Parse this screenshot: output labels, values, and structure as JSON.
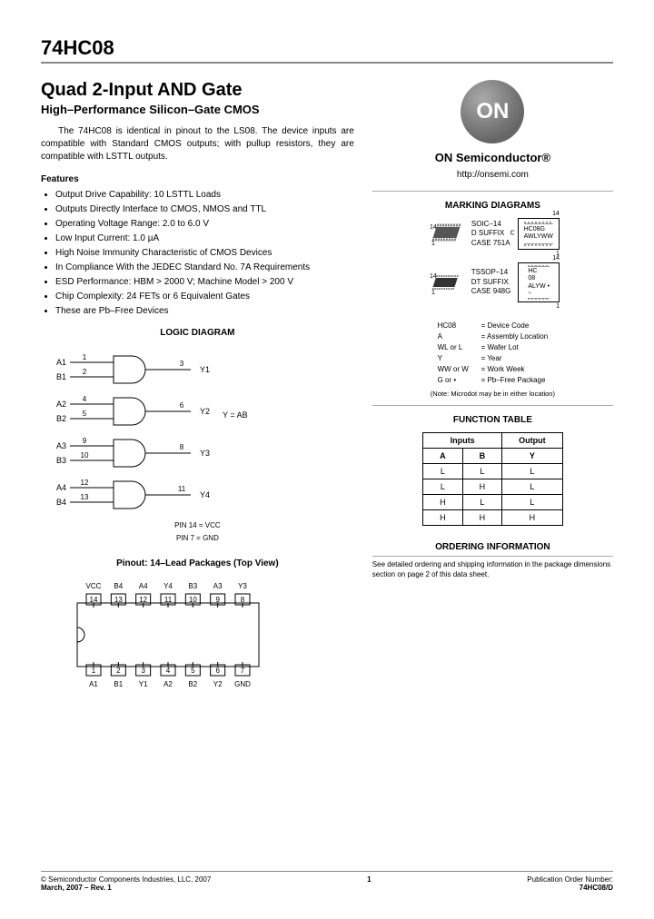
{
  "part_number": "74HC08",
  "title": "Quad 2-Input AND Gate",
  "subtitle": "High–Performance Silicon–Gate CMOS",
  "description": "The 74HC08 is identical in pinout to the LS08. The device inputs are compatible with Standard CMOS outputs; with pullup resistors, they are compatible with LSTTL outputs.",
  "features_h": "Features",
  "features": [
    "Output Drive Capability: 10 LSTTL Loads",
    "Outputs Directly Interface to CMOS, NMOS and TTL",
    "Operating Voltage Range: 2.0 to 6.0 V",
    "Low Input Current: 1.0 µA",
    "High Noise Immunity Characteristic of CMOS Devices",
    "In Compliance With the JEDEC Standard No. 7A Requirements",
    "ESD Performance: HBM > 2000 V; Machine Model > 200 V",
    "Chip Complexity: 24 FETs or 6 Equivalent Gates",
    "These are Pb–Free Devices"
  ],
  "logo_text": "ON",
  "brand": "ON Semiconductor®",
  "url": "http://onsemi.com",
  "marking_h": "MARKING DIAGRAMS",
  "package1": {
    "line1": "SOIC–14",
    "line2": "D SUFFIX",
    "line3": "CASE 751A",
    "pin14": "14",
    "pin1": "1",
    "chip_l1": "HC08G",
    "chip_l2": "AWLYWW"
  },
  "package2": {
    "line1": "TSSOP–14",
    "line2": "DT SUFFIX",
    "line3": "CASE 948G",
    "pin14": "14",
    "pin1": "1",
    "chip_l1": "HC",
    "chip_l2": "08",
    "chip_l3": "ALYW •"
  },
  "legend": [
    {
      "k": "HC08",
      "v": "= Device Code"
    },
    {
      "k": "A",
      "v": "= Assembly Location"
    },
    {
      "k": "WL or L",
      "v": "= Wafer Lot"
    },
    {
      "k": "Y",
      "v": "= Year"
    },
    {
      "k": "WW or W",
      "v": "= Work Week"
    },
    {
      "k": "G or •",
      "v": "= Pb–Free Package"
    }
  ],
  "legend_note": "(Note: Microdot may be in either location)",
  "logic_h": "LOGIC DIAGRAM",
  "gates": [
    {
      "a": "A1",
      "ap": "1",
      "b": "B1",
      "bp": "2",
      "y": "Y1",
      "yp": "3"
    },
    {
      "a": "A2",
      "ap": "4",
      "b": "B2",
      "bp": "5",
      "y": "Y2",
      "yp": "6"
    },
    {
      "a": "A3",
      "ap": "9",
      "b": "B3",
      "bp": "10",
      "y": "Y3",
      "yp": "8"
    },
    {
      "a": "A4",
      "ap": "12",
      "b": "B4",
      "bp": "13",
      "y": "Y4",
      "yp": "11"
    }
  ],
  "logic_eq": "Y = AB",
  "pin14_note": "PIN 14 = VCC",
  "pin7_note": "PIN 7 = GND",
  "pinout_h": "Pinout: 14–Lead Packages (Top View)",
  "pins_top": [
    "VCC",
    "B4",
    "A4",
    "Y4",
    "B3",
    "A3",
    "Y3"
  ],
  "pins_top_n": [
    "14",
    "13",
    "12",
    "11",
    "10",
    "9",
    "8"
  ],
  "pins_bot": [
    "A1",
    "B1",
    "Y1",
    "A2",
    "B2",
    "Y2",
    "GND"
  ],
  "pins_bot_n": [
    "1",
    "2",
    "3",
    "4",
    "5",
    "6",
    "7"
  ],
  "func_h": "FUNCTION TABLE",
  "func_head_inputs": "Inputs",
  "func_head_output": "Output",
  "func_cols": [
    "A",
    "B",
    "Y"
  ],
  "func_rows": [
    [
      "L",
      "L",
      "L"
    ],
    [
      "L",
      "H",
      "L"
    ],
    [
      "H",
      "L",
      "L"
    ],
    [
      "H",
      "H",
      "H"
    ]
  ],
  "ordering_h": "ORDERING INFORMATION",
  "ordering_text": "See detailed ordering and shipping information in the package dimensions section on page 2 of this data sheet.",
  "footer_copyright": "© Semiconductor Components Industries, LLC, 2007",
  "footer_date": "March, 2007 – Rev. 1",
  "footer_page": "1",
  "footer_pub_label": "Publication Order Number:",
  "footer_pub": "74HC08/D"
}
